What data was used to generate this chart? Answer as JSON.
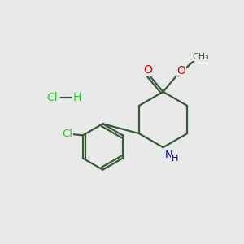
{
  "background_color": "#e8eae8",
  "bond_color": "#3a5a3a",
  "atom_colors": {
    "O": "#dd0000",
    "N": "#0000cc",
    "Cl": "#22cc22",
    "H": "#3a5a3a"
  },
  "fig_size": [
    3.0,
    3.0
  ],
  "dpi": 100
}
